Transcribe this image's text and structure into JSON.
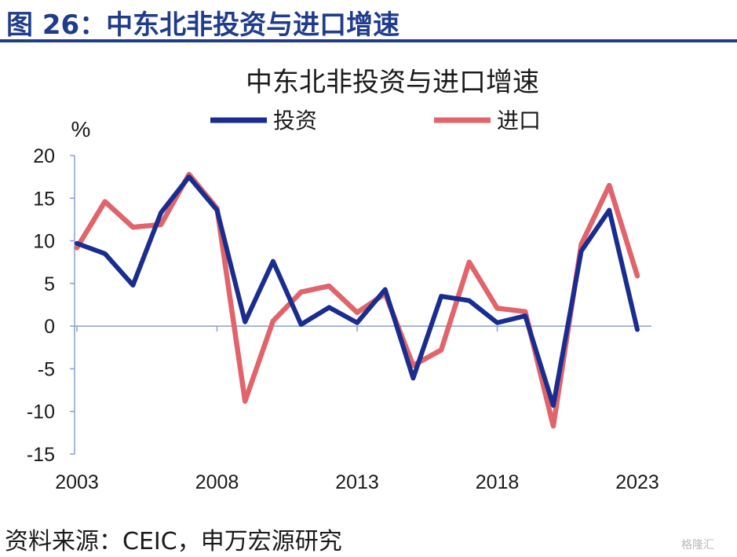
{
  "figure": {
    "title": "图 26：中东北非投资与进口增速",
    "source": "资料来源：CEIC，申万宏源研究",
    "watermark": "格隆汇"
  },
  "colors": {
    "header": "#1f3b8c",
    "investment": "#1a2d8f",
    "imports": "#e0646a",
    "axis": "#8aa0c8"
  },
  "chart_data": {
    "type": "line",
    "title": "中东北非投资与进口增速",
    "ylabel": "%",
    "ylim": [
      -15,
      20
    ],
    "yticks": [
      20,
      15,
      10,
      5,
      0,
      -5,
      -10,
      -15
    ],
    "xlim": [
      2003,
      2023
    ],
    "xticks": [
      2003,
      2008,
      2013,
      2018,
      2023
    ],
    "x": [
      2003,
      2004,
      2005,
      2006,
      2007,
      2008,
      2009,
      2010,
      2011,
      2012,
      2013,
      2014,
      2015,
      2016,
      2017,
      2018,
      2019,
      2020,
      2021,
      2022,
      2023
    ],
    "series": [
      {
        "name": "投资",
        "values": [
          9.7,
          8.5,
          4.8,
          13.3,
          17.5,
          13.6,
          0.5,
          7.6,
          0.2,
          2.2,
          0.4,
          4.3,
          -6.1,
          3.5,
          3.0,
          0.4,
          1.2,
          -9.3,
          8.8,
          13.6,
          -0.4
        ]
      },
      {
        "name": "进口",
        "values": [
          9.2,
          14.6,
          11.6,
          11.9,
          17.8,
          13.8,
          -8.8,
          0.6,
          4.0,
          4.7,
          1.6,
          3.8,
          -4.6,
          -2.8,
          7.5,
          2.1,
          1.7,
          -11.7,
          9.6,
          16.5,
          5.9
        ]
      }
    ],
    "legend": "top"
  }
}
